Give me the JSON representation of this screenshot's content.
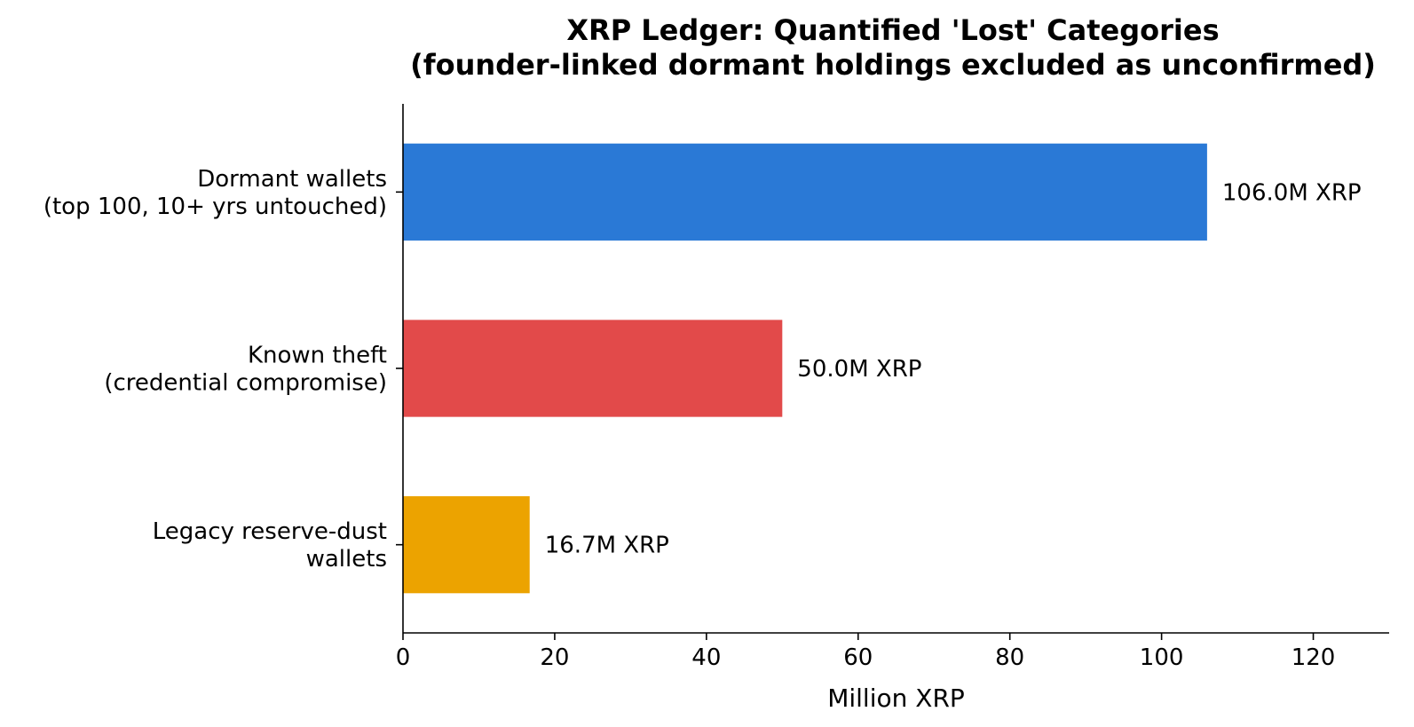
{
  "chart_data": {
    "type": "bar",
    "orientation": "horizontal",
    "title_lines": [
      "XRP Ledger: Quantified 'Lost' Categories",
      "(founder-linked dormant holdings excluded as unconfirmed)"
    ],
    "xlabel": "Million XRP",
    "ylabel": "",
    "xlim": [
      0,
      130
    ],
    "xticks": [
      0,
      20,
      40,
      60,
      80,
      100,
      120
    ],
    "grid": false,
    "categories": [
      {
        "lines": [
          "Dormant wallets",
          "(top 100, 10+ yrs untouched)"
        ]
      },
      {
        "lines": [
          "Known theft",
          "(credential compromise)"
        ]
      },
      {
        "lines": [
          "Legacy reserve-dust",
          "wallets"
        ]
      }
    ],
    "values": [
      106.0,
      50.0,
      16.7
    ],
    "value_labels": [
      "106.0M XRP",
      "50.0M XRP",
      "16.7M XRP"
    ],
    "colors": [
      "#2a79d6",
      "#e24a4a",
      "#eca300"
    ]
  }
}
